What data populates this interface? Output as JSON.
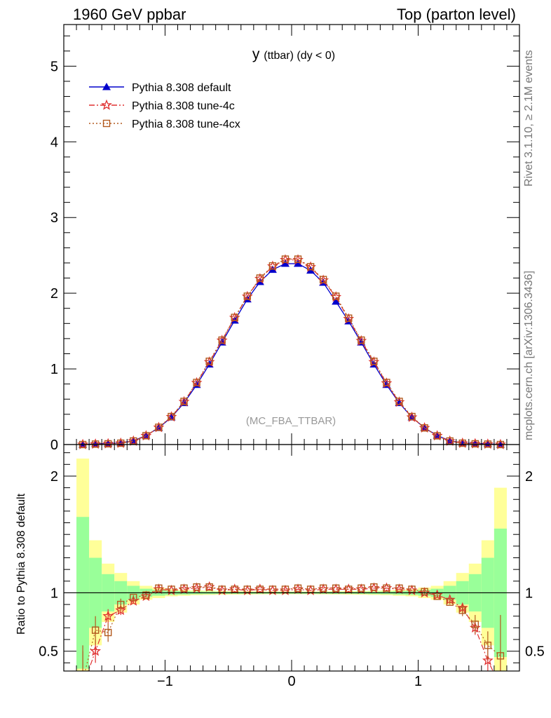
{
  "header": {
    "left": "1960 GeV ppbar",
    "right": "Top (parton level)"
  },
  "side_labels": {
    "rivet": "Rivet 3.1.10, ≥ 2.1M events",
    "mcplots": "mcplots.cern.ch [arXiv:1306.3436]"
  },
  "chart_data": [
    {
      "type": "line",
      "title_main": "y",
      "title_rest": "(ttbar) (dy < 0)",
      "watermark": "(MC_FBA_TTBAR)",
      "xlim": [
        -1.8,
        1.8
      ],
      "ylim": [
        0,
        5.55
      ],
      "yticks": [
        0,
        1,
        2,
        3,
        4,
        5
      ],
      "ytick_labels": [
        "0",
        "1",
        "2",
        "3",
        "4",
        "5"
      ],
      "legend_position": "top-left",
      "x": [
        -1.65,
        -1.55,
        -1.45,
        -1.35,
        -1.25,
        -1.15,
        -1.05,
        -0.95,
        -0.85,
        -0.75,
        -0.65,
        -0.55,
        -0.45,
        -0.35,
        -0.25,
        -0.15,
        -0.05,
        0.05,
        0.15,
        0.25,
        0.35,
        0.45,
        0.55,
        0.65,
        0.75,
        0.85,
        0.95,
        1.05,
        1.15,
        1.25,
        1.35,
        1.45,
        1.55,
        1.65
      ],
      "series": [
        {
          "name": "Pythia 8.308 default",
          "color": "#0000cc",
          "marker": "triangle",
          "dash": "",
          "values": [
            0.0,
            0.01,
            0.015,
            0.02,
            0.05,
            0.12,
            0.22,
            0.36,
            0.55,
            0.79,
            1.06,
            1.35,
            1.64,
            1.92,
            2.15,
            2.31,
            2.39,
            2.39,
            2.3,
            2.14,
            1.89,
            1.63,
            1.35,
            1.06,
            0.79,
            0.55,
            0.36,
            0.22,
            0.12,
            0.05,
            0.02,
            0.015,
            0.01,
            0.0
          ]
        },
        {
          "name": "Pythia 8.308 tune-4c",
          "color": "#e03030",
          "marker": "star",
          "dash": "8,3,2,3",
          "values": [
            0.0,
            0.005,
            0.01,
            0.017,
            0.045,
            0.115,
            0.225,
            0.365,
            0.565,
            0.815,
            1.09,
            1.375,
            1.675,
            1.955,
            2.19,
            2.355,
            2.44,
            2.44,
            2.345,
            2.17,
            1.95,
            1.66,
            1.37,
            1.09,
            0.81,
            0.56,
            0.36,
            0.22,
            0.115,
            0.045,
            0.017,
            0.01,
            0.005,
            0.0
          ]
        },
        {
          "name": "Pythia 8.308 tune-4cx",
          "color": "#b35a1f",
          "marker": "square",
          "dash": "2,3",
          "values": [
            0.0,
            0.006,
            0.01,
            0.018,
            0.047,
            0.117,
            0.228,
            0.37,
            0.57,
            0.82,
            1.1,
            1.38,
            1.68,
            1.96,
            2.2,
            2.36,
            2.45,
            2.45,
            2.35,
            2.18,
            1.96,
            1.67,
            1.38,
            1.1,
            0.82,
            0.57,
            0.37,
            0.22,
            0.115,
            0.047,
            0.018,
            0.01,
            0.006,
            0.0
          ]
        }
      ]
    },
    {
      "type": "line",
      "ylabel": "Ratio to Pythia 8.308 default",
      "xlim": [
        -1.8,
        1.8
      ],
      "ylim": [
        0.33,
        2.27
      ],
      "xticks": [
        -1,
        0,
        1
      ],
      "xtick_labels": [
        "−1",
        "0",
        "1"
      ],
      "yticks": [
        0.5,
        1,
        2
      ],
      "ytick_labels": [
        "0.5",
        "1",
        "2"
      ],
      "reference_line": 1,
      "x": [
        -1.65,
        -1.55,
        -1.45,
        -1.35,
        -1.25,
        -1.15,
        -1.05,
        -0.95,
        -0.85,
        -0.75,
        -0.65,
        -0.55,
        -0.45,
        -0.35,
        -0.25,
        -0.15,
        -0.05,
        0.05,
        0.15,
        0.25,
        0.35,
        0.45,
        0.55,
        0.65,
        0.75,
        0.85,
        0.95,
        1.05,
        1.15,
        1.25,
        1.35,
        1.45,
        1.55,
        1.65
      ],
      "bands": {
        "yellow_halfwidth": [
          1.15,
          0.45,
          0.25,
          0.17,
          0.1,
          0.06,
          0.045,
          0.03,
          0.025,
          0.02,
          0.018,
          0.016,
          0.015,
          0.014,
          0.013,
          0.012,
          0.012,
          0.012,
          0.012,
          0.013,
          0.014,
          0.015,
          0.016,
          0.018,
          0.02,
          0.025,
          0.03,
          0.045,
          0.06,
          0.1,
          0.17,
          0.25,
          0.45,
          0.9
        ],
        "green_halfwidth": [
          0.65,
          0.3,
          0.16,
          0.1,
          0.06,
          0.035,
          0.025,
          0.018,
          0.015,
          0.012,
          0.011,
          0.01,
          0.009,
          0.009,
          0.008,
          0.008,
          0.008,
          0.008,
          0.008,
          0.008,
          0.009,
          0.009,
          0.01,
          0.011,
          0.012,
          0.015,
          0.018,
          0.025,
          0.035,
          0.06,
          0.1,
          0.16,
          0.3,
          0.55
        ],
        "yellow_color": "#ffff99",
        "green_color": "#99ff99"
      },
      "series": [
        {
          "name": "Pythia 8.308 tune-4c",
          "color": "#e03030",
          "marker": "star",
          "dash": "8,3,2,3",
          "values": [
            0.2,
            0.5,
            0.8,
            0.85,
            0.93,
            0.97,
            1.03,
            1.02,
            1.03,
            1.04,
            1.05,
            1.02,
            1.03,
            1.02,
            1.03,
            1.02,
            1.02,
            1.03,
            1.02,
            1.03,
            1.03,
            1.03,
            1.03,
            1.04,
            1.04,
            1.03,
            1.02,
            1.0,
            0.98,
            0.94,
            0.87,
            0.7,
            0.42,
            0.2
          ],
          "errors": [
            0.3,
            0.1,
            0.06,
            0.04,
            0.02,
            0.01,
            0.01,
            0.005,
            0.005,
            0.005,
            0.005,
            0.005,
            0.005,
            0.005,
            0.005,
            0.005,
            0.005,
            0.005,
            0.005,
            0.005,
            0.005,
            0.005,
            0.005,
            0.005,
            0.005,
            0.005,
            0.005,
            0.01,
            0.01,
            0.02,
            0.04,
            0.06,
            0.1,
            0.3
          ]
        },
        {
          "name": "Pythia 8.308 tune-4cx",
          "color": "#b35a1f",
          "marker": "square",
          "dash": "2,3",
          "values": [
            0.25,
            0.68,
            0.66,
            0.9,
            0.96,
            0.98,
            1.04,
            1.03,
            1.04,
            1.05,
            1.05,
            1.03,
            1.03,
            1.03,
            1.03,
            1.03,
            1.03,
            1.04,
            1.03,
            1.04,
            1.04,
            1.03,
            1.04,
            1.05,
            1.04,
            1.04,
            1.03,
            1.01,
            0.97,
            0.92,
            0.85,
            0.73,
            0.55,
            0.46
          ],
          "errors": [
            0.3,
            0.12,
            0.08,
            0.05,
            0.02,
            0.01,
            0.01,
            0.005,
            0.005,
            0.005,
            0.005,
            0.005,
            0.005,
            0.005,
            0.005,
            0.005,
            0.005,
            0.005,
            0.005,
            0.005,
            0.005,
            0.005,
            0.005,
            0.005,
            0.005,
            0.005,
            0.005,
            0.01,
            0.01,
            0.02,
            0.05,
            0.08,
            0.12,
            0.35
          ]
        }
      ]
    }
  ]
}
